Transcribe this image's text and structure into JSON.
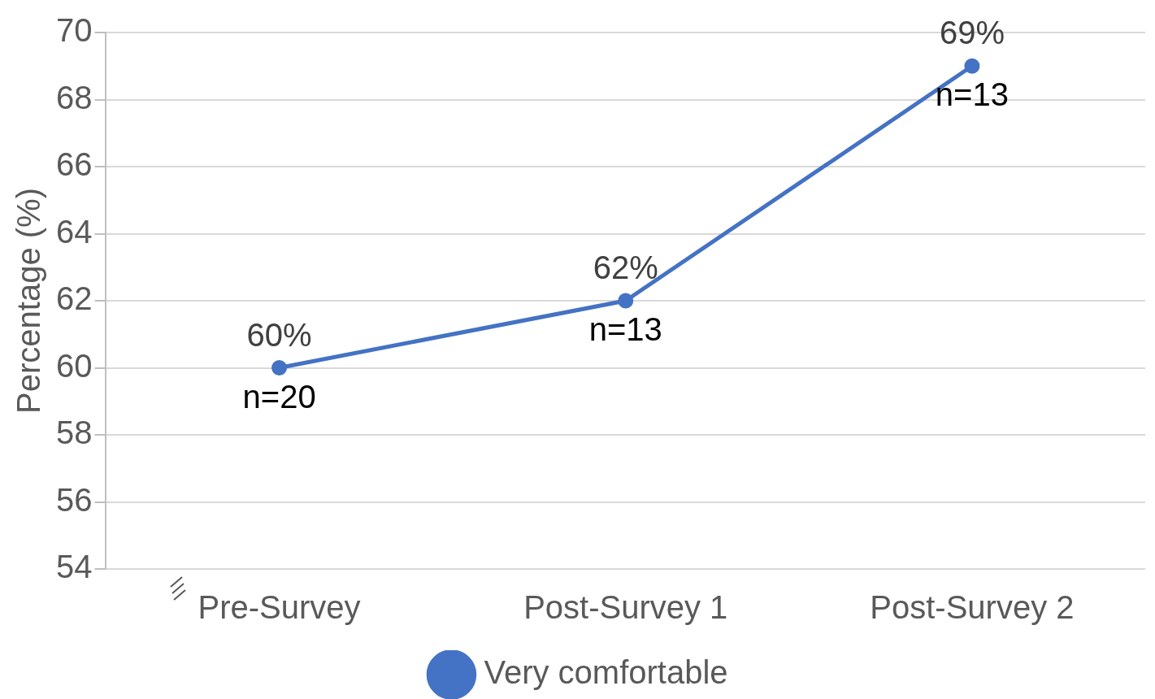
{
  "chart_data": {
    "type": "line",
    "ylabel": "Percentage (%)",
    "categories": [
      "Pre-Survey",
      "Post-Survey 1",
      "Post-Survey 2"
    ],
    "series": [
      {
        "name": "Very comfortable",
        "color": "#4472c4",
        "values": [
          60,
          62,
          69
        ],
        "value_labels": [
          "60%",
          "62%",
          "69%"
        ]
      }
    ],
    "ylim": [
      54,
      70
    ],
    "yticks": [
      54,
      56,
      58,
      60,
      62,
      64,
      66,
      68,
      70
    ],
    "grid": "y",
    "legend": "bottom",
    "marker": "circle",
    "line_style": "solid",
    "annotations": [
      {
        "text": "n=20",
        "x": "Pre-Survey",
        "y": 60
      },
      {
        "text": "n=13",
        "x": "Post-Survey 1",
        "y": 62
      },
      {
        "text": "n=13",
        "x": "Post-Survey 2",
        "y": 69
      }
    ]
  }
}
